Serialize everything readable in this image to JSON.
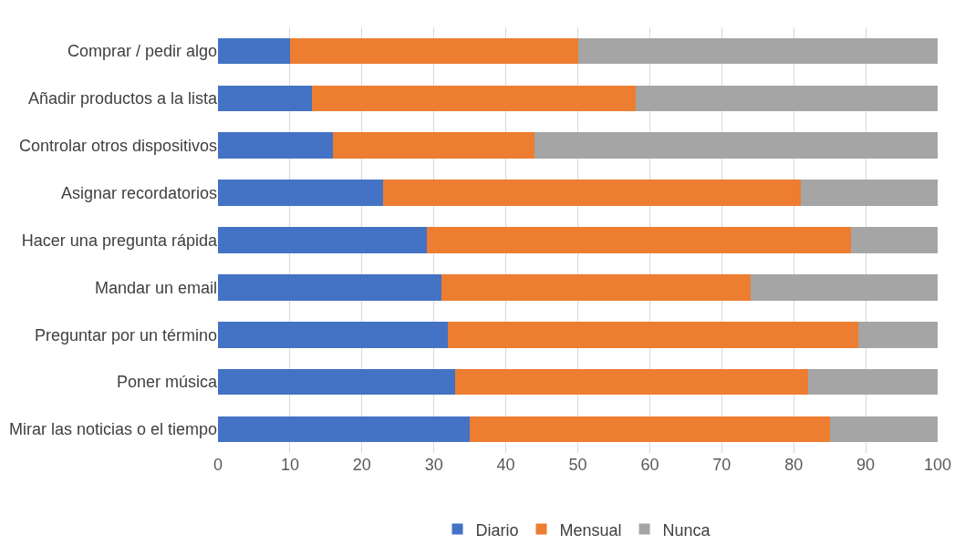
{
  "chart_data": {
    "type": "bar",
    "orientation": "horizontal",
    "stacked": true,
    "categories": [
      "Comprar / pedir algo",
      "Añadir productos a la lista",
      "Controlar otros dispositivos",
      "Asignar recordatorios",
      "Hacer una pregunta rápida",
      "Mandar un email",
      "Preguntar por un término",
      "Poner música",
      "Mirar las noticias o el tiempo"
    ],
    "series": [
      {
        "name": "Diario",
        "color": "#4472c4",
        "values": [
          10,
          13,
          16,
          23,
          29,
          31,
          32,
          33,
          35
        ]
      },
      {
        "name": "Mensual",
        "color": "#ed7d31",
        "values": [
          40,
          45,
          28,
          58,
          59,
          43,
          57,
          49,
          50
        ]
      },
      {
        "name": "Nunca",
        "color": "#a5a5a5",
        "values": [
          50,
          42,
          56,
          19,
          12,
          26,
          11,
          18,
          15
        ]
      }
    ],
    "xlim": [
      0,
      100
    ],
    "xticks": [
      0,
      10,
      20,
      30,
      40,
      50,
      60,
      70,
      80,
      90,
      100
    ],
    "grid": "x",
    "legend": "bottom"
  }
}
